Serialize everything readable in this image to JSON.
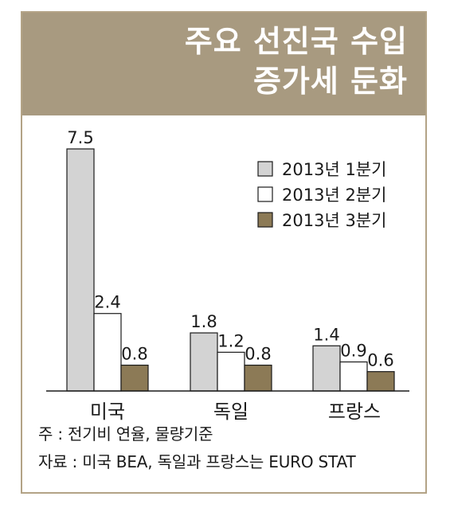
{
  "header": {
    "title_line1": "주요 선진국 수입",
    "title_line2": "증가세 둔화"
  },
  "colors": {
    "header_bg": "#a89a80",
    "border": "#b3a386",
    "series": [
      "#d3d3d3",
      "#ffffff",
      "#8c7a56"
    ]
  },
  "chart_data": {
    "type": "bar",
    "categories": [
      "미국",
      "독일",
      "프랑스"
    ],
    "series": [
      {
        "name": "2013년 1분기",
        "values": [
          7.5,
          1.8,
          1.4
        ]
      },
      {
        "name": "2013년 2분기",
        "values": [
          2.4,
          1.2,
          0.9
        ]
      },
      {
        "name": "2013년 3분기",
        "values": [
          0.8,
          0.8,
          0.6
        ]
      }
    ],
    "value_labels": [
      [
        "7.5",
        "1.8",
        "1.4"
      ],
      [
        "2.4",
        "1.2",
        "0.9"
      ],
      [
        "0.8",
        "0.8",
        "0.6"
      ]
    ],
    "ylim": [
      0,
      7.5
    ],
    "legend_position": "top-right",
    "grid": false
  },
  "footnotes": {
    "note": "주 : 전기비 연율, 물량기준",
    "source": "자료 : 미국 BEA, 독일과 프랑스는 EURO STAT"
  }
}
